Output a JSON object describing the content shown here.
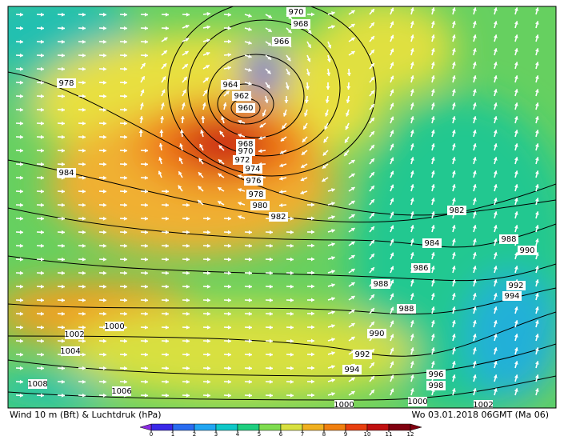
{
  "title": "Wind 10 m (Bft) & Luchtdruk (hPa)",
  "timestamp": "Wo 03.01.2018 06GMT (Ma 06)",
  "legend": {
    "ticks": [
      0,
      1,
      2,
      3,
      4,
      5,
      6,
      7,
      8,
      9,
      10,
      11,
      12
    ],
    "colors": [
      "#8a2be2",
      "#3a28e8",
      "#2a6cf0",
      "#22a6f2",
      "#10c8c8",
      "#1fcf80",
      "#7fdc50",
      "#d8e040",
      "#f0b020",
      "#f08010",
      "#e84010",
      "#c01010",
      "#800010"
    ]
  },
  "isobar_labels": [
    "970",
    "968",
    "966",
    "964",
    "962",
    "960",
    "968",
    "970",
    "972",
    "974",
    "976",
    "978",
    "980",
    "982",
    "978",
    "984",
    "982",
    "984",
    "986",
    "988",
    "988",
    "988",
    "990",
    "992",
    "994",
    "990",
    "992",
    "994",
    "996",
    "998",
    "1000",
    "1002",
    "1004",
    "1006",
    "1008",
    "1000",
    "1000",
    "1002"
  ]
}
